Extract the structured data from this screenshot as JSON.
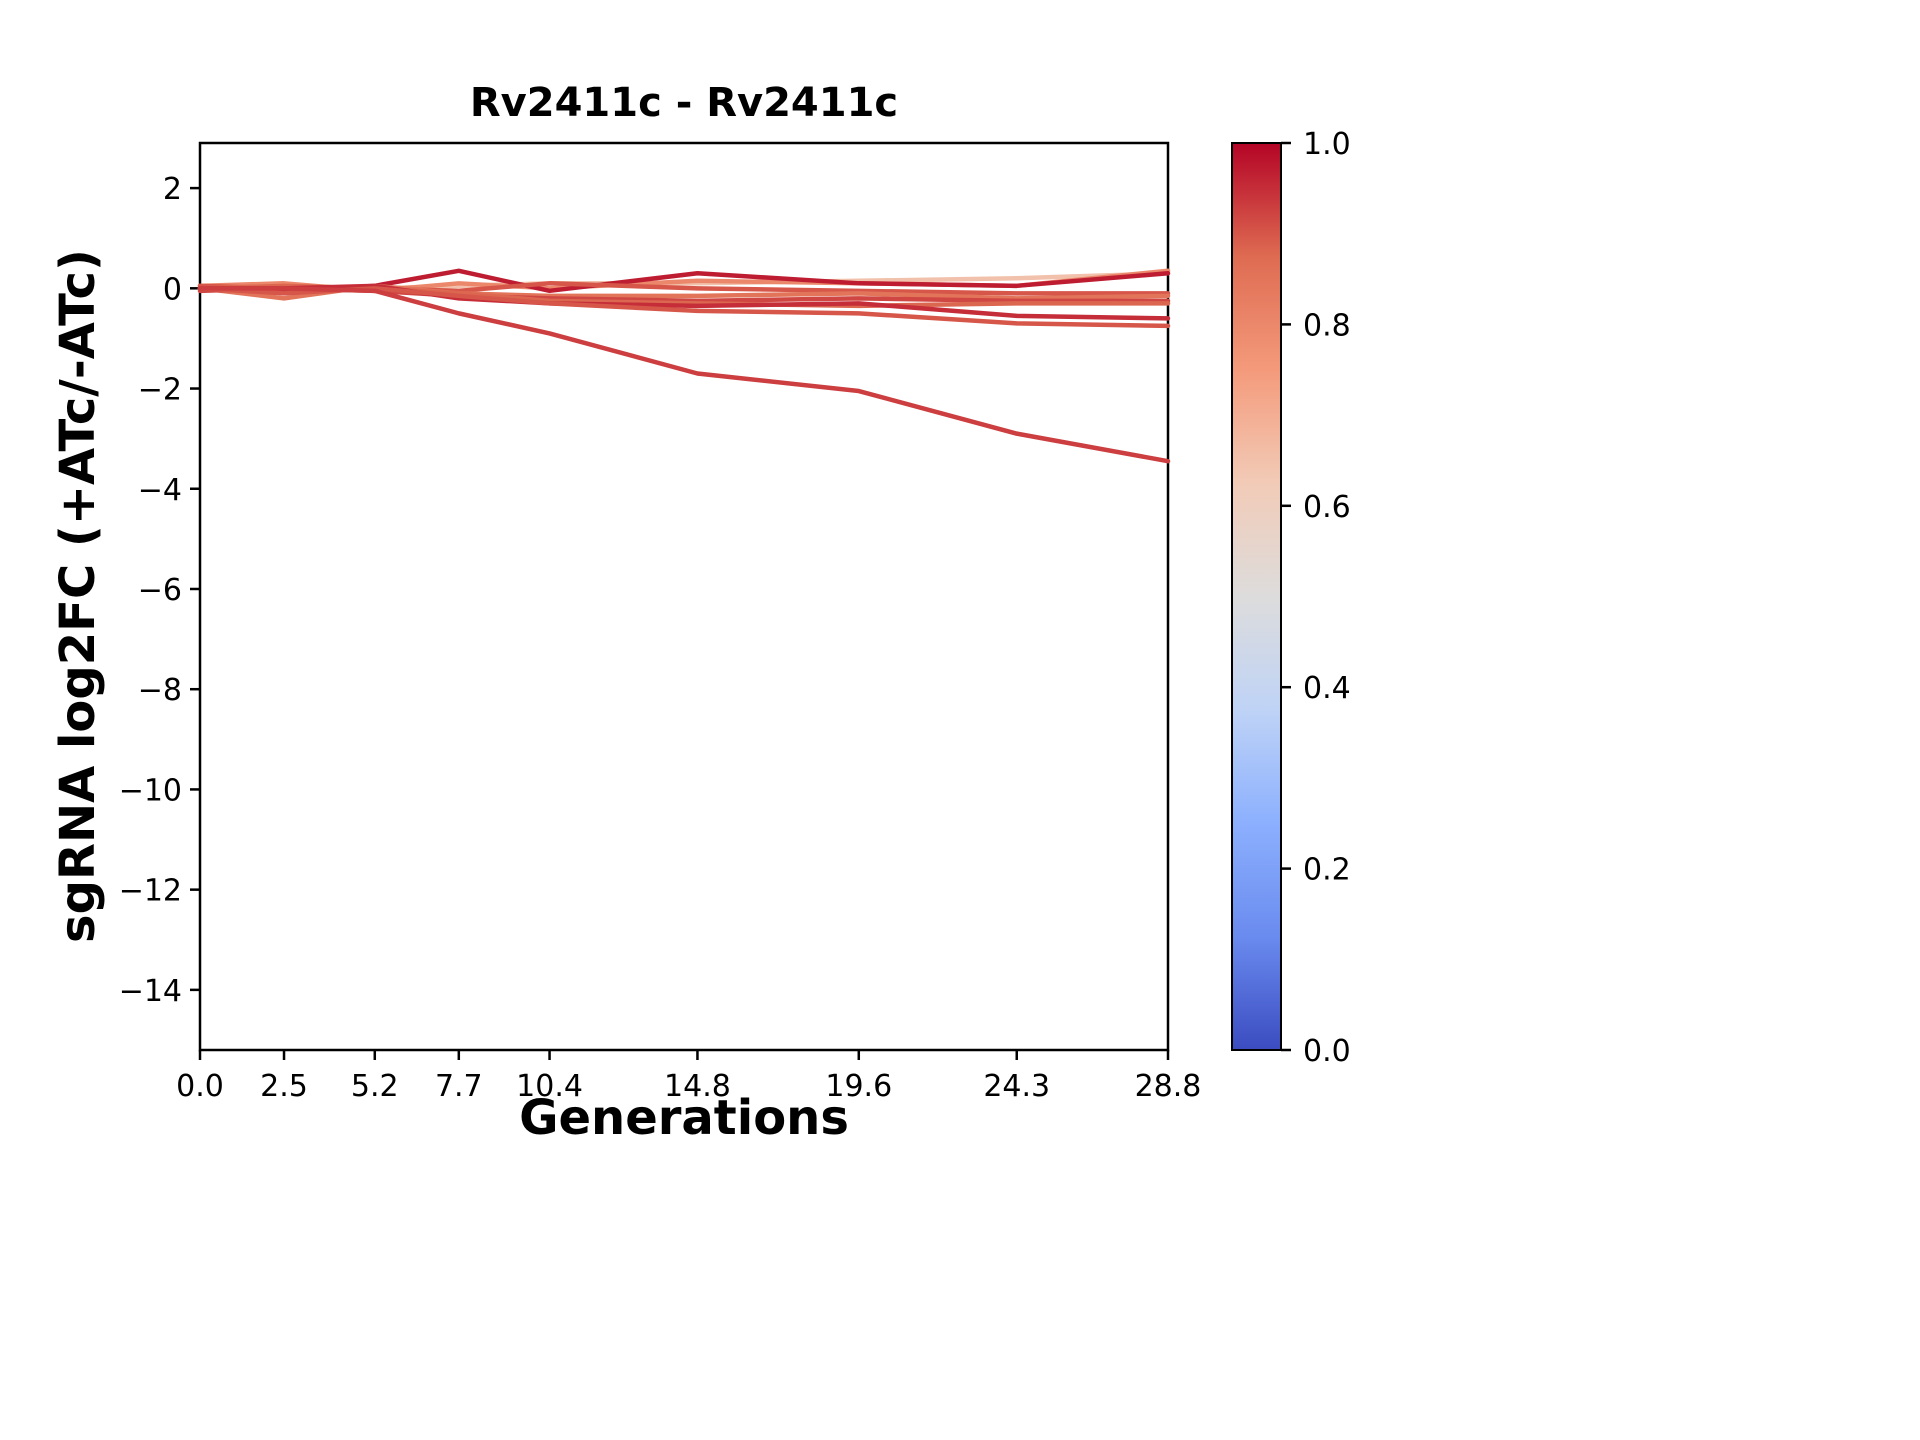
{
  "chart_data": {
    "type": "line",
    "title": "Rv2411c - Rv2411c",
    "xlabel": "Generations",
    "ylabel": "sgRNA log2FC (+ATc/-ATc)",
    "x": [
      0.0,
      2.5,
      5.2,
      7.7,
      10.4,
      14.8,
      19.6,
      24.3,
      28.8
    ],
    "xlim": [
      0,
      28.8
    ],
    "ylim": [
      -15.2,
      2.9
    ],
    "grid": false,
    "legend": "none",
    "xticks": {
      "values": [
        0.0,
        2.5,
        5.2,
        7.7,
        10.4,
        14.8,
        19.6,
        24.3,
        28.8
      ],
      "labels": [
        "0.0",
        "2.5",
        "5.2",
        "7.7",
        "10.4",
        "14.8",
        "19.6",
        "24.3",
        "28.8"
      ]
    },
    "yticks": {
      "values": [
        2,
        0,
        -2,
        -4,
        -6,
        -8,
        -10,
        -12,
        -14
      ],
      "labels": [
        "2",
        "0",
        "−2",
        "−4",
        "−6",
        "−8",
        "−10",
        "−12",
        "−14"
      ]
    },
    "series": [
      {
        "c": 0.65,
        "values": [
          0.0,
          0.05,
          0.0,
          0.05,
          0.1,
          0.1,
          0.15,
          0.2,
          0.3
        ]
      },
      {
        "c": 0.8,
        "values": [
          0.05,
          0.1,
          -0.05,
          0.1,
          0.0,
          0.15,
          0.1,
          0.05,
          0.35
        ]
      },
      {
        "c": 0.97,
        "values": [
          0.0,
          -0.05,
          0.05,
          0.35,
          -0.05,
          0.3,
          0.1,
          0.05,
          0.3
        ]
      },
      {
        "c": 0.9,
        "values": [
          0.05,
          0.0,
          0.0,
          -0.05,
          0.1,
          0.0,
          -0.05,
          -0.1,
          -0.1
        ]
      },
      {
        "c": 0.85,
        "values": [
          0.0,
          -0.2,
          0.05,
          -0.1,
          -0.15,
          -0.15,
          -0.1,
          -0.2,
          -0.15
        ]
      },
      {
        "c": 0.92,
        "values": [
          -0.05,
          0.0,
          -0.05,
          -0.15,
          -0.2,
          -0.25,
          -0.2,
          -0.25,
          -0.25
        ]
      },
      {
        "c": 0.88,
        "values": [
          0.0,
          0.05,
          0.0,
          -0.1,
          -0.25,
          -0.3,
          -0.35,
          -0.3,
          -0.3
        ]
      },
      {
        "c": 0.95,
        "values": [
          0.0,
          0.0,
          0.05,
          -0.2,
          -0.3,
          -0.35,
          -0.3,
          -0.55,
          -0.6
        ]
      },
      {
        "c": 0.9,
        "values": [
          0.0,
          -0.1,
          0.0,
          -0.15,
          -0.3,
          -0.45,
          -0.5,
          -0.7,
          -0.75
        ]
      },
      {
        "c": 0.93,
        "values": [
          0.0,
          0.0,
          -0.05,
          -0.5,
          -0.9,
          -1.7,
          -2.05,
          -2.9,
          -3.45
        ]
      }
    ],
    "colorbar": {
      "colormap": "coolwarm",
      "lim": [
        0,
        1
      ],
      "ticks": {
        "values": [
          0.0,
          0.2,
          0.4,
          0.6,
          0.8,
          1.0
        ],
        "labels": [
          "0.0",
          "0.2",
          "0.4",
          "0.6",
          "0.8",
          "1.0"
        ]
      },
      "stops": [
        {
          "pos": 0.0,
          "color": "#3b4cc0"
        },
        {
          "pos": 0.125,
          "color": "#6a8bef"
        },
        {
          "pos": 0.25,
          "color": "#8cb0fe"
        },
        {
          "pos": 0.375,
          "color": "#bfd3f6"
        },
        {
          "pos": 0.5,
          "color": "#dddcdc"
        },
        {
          "pos": 0.625,
          "color": "#f2cbb7"
        },
        {
          "pos": 0.75,
          "color": "#f49a7b"
        },
        {
          "pos": 0.875,
          "color": "#de6b52"
        },
        {
          "pos": 1.0,
          "color": "#b40426"
        }
      ]
    }
  }
}
